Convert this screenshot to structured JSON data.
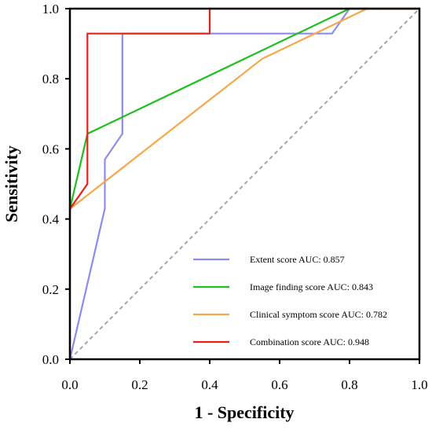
{
  "chart_data": {
    "type": "line",
    "xlabel": "1 - Specificity",
    "ylabel": "Sensitivity",
    "xlim": [
      0,
      1
    ],
    "ylim": [
      0,
      1
    ],
    "x_ticks": [
      "0.0",
      "0.2",
      "0.4",
      "0.6",
      "0.8",
      "1.0"
    ],
    "y_ticks": [
      "0.0",
      "0.2",
      "0.4",
      "0.6",
      "0.8",
      "1.0"
    ],
    "grid": false,
    "legend_position": "bottom-right",
    "reference_line": {
      "style": "dashed",
      "color": "#a6a6a6",
      "points": [
        [
          0,
          0
        ],
        [
          1,
          1
        ]
      ]
    },
    "series": [
      {
        "name": "Extent score AUC: 0.857",
        "color": "#8c8cf0",
        "points": [
          [
            0,
            0
          ],
          [
            0.1,
            0.43
          ],
          [
            0.1,
            0.57
          ],
          [
            0.15,
            0.643
          ],
          [
            0.15,
            0.929
          ],
          [
            0.75,
            0.929
          ],
          [
            0.8,
            1.0
          ],
          [
            1.0,
            1.0
          ]
        ]
      },
      {
        "name": "Image finding score AUC: 0.843",
        "color": "#1fbf1f",
        "points": [
          [
            0,
            0.429
          ],
          [
            0.05,
            0.643
          ],
          [
            0.8,
            1.0
          ],
          [
            1.0,
            1.0
          ]
        ]
      },
      {
        "name": "Clinical symptom score AUC: 0.782",
        "color": "#f6a74c",
        "points": [
          [
            0,
            0.429
          ],
          [
            0.55,
            0.857
          ],
          [
            0.85,
            1.0
          ],
          [
            1.0,
            1.0
          ]
        ]
      },
      {
        "name": "Combination score AUC: 0.948",
        "color": "#e8201c",
        "points": [
          [
            0,
            0
          ],
          [
            0,
            0.429
          ],
          [
            0.05,
            0.5
          ],
          [
            0.05,
            0.929
          ],
          [
            0.4,
            0.929
          ],
          [
            0.4,
            1.0
          ],
          [
            1.0,
            1.0
          ]
        ]
      }
    ]
  }
}
